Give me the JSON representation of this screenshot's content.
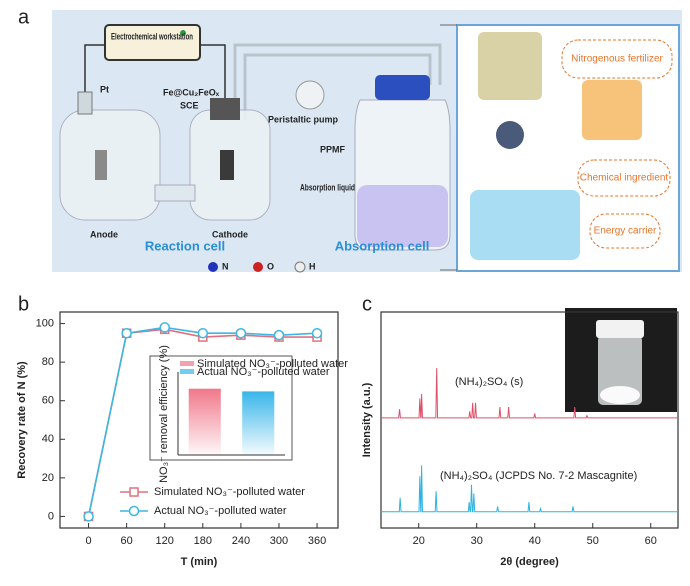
{
  "diagram": {
    "panel_label": "a",
    "workstation": "Electrochemical workstation",
    "pt": "Pt",
    "electrode": "Fe@Cu₂FeOₓ",
    "sce": "SCE",
    "pump": "Peristaltic pump",
    "ppmf": "PPMF",
    "absorption_liquid": "Absorption liquid",
    "anode": "Anode",
    "cathode": "Cathode",
    "reaction_cell": "Reaction cell",
    "absorption_cell": "Absorption cell",
    "atoms": [
      "N",
      "O",
      "H"
    ],
    "uses": [
      "Nitrogenous fertilizer",
      "Chemical ingredient",
      "Energy carrier"
    ]
  },
  "chart_data": [
    {
      "type": "line",
      "panel_label": "b",
      "xlabel": "T (min)",
      "ylabel": "Recovery rate of N (%)",
      "x": [
        0,
        60,
        120,
        180,
        240,
        300,
        360
      ],
      "xlim": [
        -45,
        393
      ],
      "xticks": [
        0,
        60,
        120,
        180,
        240,
        300,
        360
      ],
      "ylim": [
        -6,
        106
      ],
      "yticks": [
        0,
        20,
        40,
        60,
        80,
        100
      ],
      "legend": "lower right",
      "markers": true,
      "series": [
        {
          "name": "Simulated NO₃⁻-polluted water",
          "color": "#e0707f",
          "marker": "square",
          "values": [
            0,
            95,
            97,
            93,
            94,
            93,
            93
          ]
        },
        {
          "name": "Actual NO₃⁻-polluted water",
          "color": "#3db7e4",
          "marker": "circle",
          "values": [
            0,
            95,
            98,
            95,
            95,
            94,
            95
          ]
        }
      ]
    },
    {
      "type": "bar",
      "ylabel": "NO₃⁻ removal efficiency (%)",
      "categories": [
        "Simulated NO₃⁻-polluted water",
        "Actual NO₃⁻-polluted water"
      ],
      "values": [
        99,
        95
      ],
      "colors": [
        "#f0788a",
        "#38b6ea"
      ],
      "ylim": [
        0,
        115
      ]
    },
    {
      "type": "line",
      "panel_label": "c",
      "xlabel": "2θ (degree)",
      "ylabel": "Intensity (a.u.)",
      "xlim": [
        13.5,
        64.7
      ],
      "xticks": [
        20,
        30,
        40,
        50,
        60
      ],
      "ylim": [
        0,
        100
      ],
      "markers": false,
      "annotations": [
        "(NH₄)₂SO₄ (s)",
        "(NH₄)₂SO₄ (JCPDS No. 7-2 Mascagnite)"
      ],
      "series": [
        {
          "color": "#e0506a",
          "x": [
            13.5,
            16.55,
            16.7,
            16.85,
            20.05,
            20.2,
            20.35,
            20.4,
            20.5,
            20.65,
            22.95,
            23.1,
            23.25,
            28.65,
            28.8,
            28.95,
            29.15,
            29.3,
            29.45,
            29.65,
            29.8,
            29.95,
            33.85,
            34,
            34.15,
            35.35,
            35.5,
            35.65,
            39.85,
            40,
            40.15,
            46.75,
            46.9,
            47.05,
            48.85,
            49,
            49.15,
            64.7
          ],
          "values": [
            51,
            51,
            55,
            51,
            51,
            60,
            51,
            51,
            62,
            51,
            51,
            74,
            51,
            51,
            54,
            51,
            51,
            58,
            51,
            51,
            58,
            51,
            51,
            56,
            51,
            51,
            56,
            51,
            51,
            53,
            51,
            51,
            56,
            51,
            51,
            52,
            51,
            51
          ]
        },
        {
          "color": "#2fb3e0",
          "x": [
            13.5,
            16.65,
            16.8,
            16.95,
            20.05,
            20.2,
            20.35,
            20.4,
            20.5,
            20.65,
            22.85,
            23,
            23.15,
            28.55,
            28.7,
            28.85,
            28.95,
            29.1,
            29.25,
            29.35,
            29.5,
            29.65,
            33.45,
            33.6,
            33.75,
            38.85,
            39,
            39.15,
            40.85,
            41,
            41.15,
            46.45,
            46.6,
            46.75,
            64.7
          ],
          "values": [
            7.5,
            7.5,
            14,
            7.5,
            7.5,
            24,
            7.5,
            7.5,
            29,
            7.5,
            7.5,
            17,
            7.5,
            7.5,
            12,
            7.5,
            7.5,
            20,
            7.5,
            7.5,
            16,
            7.5,
            7.5,
            10,
            7.5,
            7.5,
            12,
            7.5,
            7.5,
            9,
            7.5,
            7.5,
            10,
            7.5,
            7.5
          ]
        }
      ]
    }
  ]
}
